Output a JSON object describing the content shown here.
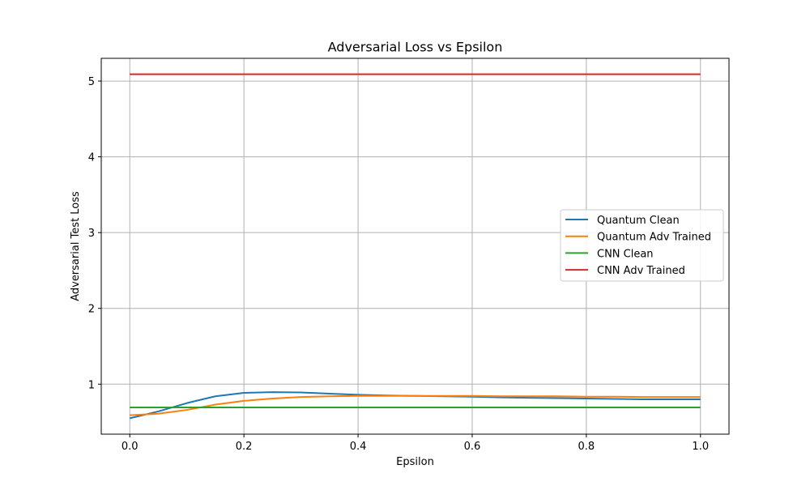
{
  "chart_data": {
    "type": "line",
    "title": "Adversarial Loss vs Epsilon",
    "xlabel": "Epsilon",
    "ylabel": "Adversarial Test Loss",
    "xlim": [
      -0.05,
      1.05
    ],
    "ylim": [
      0.34,
      5.3
    ],
    "x_ticks": [
      0.0,
      0.2,
      0.4,
      0.6,
      0.8,
      1.0
    ],
    "x_tick_labels": [
      "0.0",
      "0.2",
      "0.4",
      "0.6",
      "0.8",
      "1.0"
    ],
    "y_ticks": [
      1,
      2,
      3,
      4,
      5
    ],
    "y_tick_labels": [
      "1",
      "2",
      "3",
      "4",
      "5"
    ],
    "grid": true,
    "legend_position": "center-right",
    "x": [
      0.0,
      0.05,
      0.1,
      0.15,
      0.2,
      0.25,
      0.3,
      0.35,
      0.4,
      0.45,
      0.5,
      0.55,
      0.6,
      0.65,
      0.7,
      0.75,
      0.8,
      0.85,
      0.9,
      0.95,
      1.0
    ],
    "series": [
      {
        "name": "Quantum Clean",
        "color": "#1f77b4",
        "values": [
          0.55,
          0.64,
          0.75,
          0.84,
          0.885,
          0.895,
          0.89,
          0.875,
          0.86,
          0.85,
          0.845,
          0.84,
          0.835,
          0.825,
          0.82,
          0.815,
          0.81,
          0.805,
          0.8,
          0.8,
          0.8
        ]
      },
      {
        "name": "Quantum Adv Trained",
        "color": "#ff7f0e",
        "values": [
          0.59,
          0.61,
          0.66,
          0.73,
          0.78,
          0.81,
          0.83,
          0.84,
          0.845,
          0.845,
          0.845,
          0.845,
          0.845,
          0.84,
          0.84,
          0.84,
          0.835,
          0.835,
          0.83,
          0.83,
          0.83
        ]
      },
      {
        "name": "CNN Clean",
        "color": "#2ca02c",
        "values": [
          0.693,
          0.693,
          0.693,
          0.693,
          0.693,
          0.693,
          0.693,
          0.693,
          0.693,
          0.693,
          0.693,
          0.693,
          0.693,
          0.693,
          0.693,
          0.693,
          0.693,
          0.693,
          0.693,
          0.693,
          0.693
        ]
      },
      {
        "name": "CNN Adv Trained",
        "color": "#d62728",
        "values": [
          5.09,
          5.09,
          5.09,
          5.09,
          5.09,
          5.09,
          5.09,
          5.09,
          5.09,
          5.09,
          5.09,
          5.09,
          5.09,
          5.09,
          5.09,
          5.09,
          5.09,
          5.09,
          5.09,
          5.09,
          5.09
        ]
      }
    ]
  }
}
